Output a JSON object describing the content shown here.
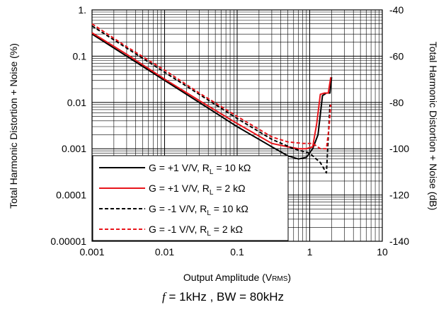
{
  "chart_data": {
    "type": "line",
    "xscale": "log",
    "yscale": "log",
    "xlim": [
      0.001,
      10
    ],
    "ylim": [
      1e-05,
      1
    ],
    "y2lim": [
      -140,
      -40
    ],
    "x_ticks": [
      "0.001",
      "0.01",
      "0.1",
      "1",
      "10"
    ],
    "y_ticks": [
      "0.00001",
      "0.0001",
      "0.001",
      "0.01",
      "0.1",
      "1."
    ],
    "y2_ticks": [
      "-140",
      "-120",
      "-100",
      "-80",
      "-60",
      "-40"
    ],
    "xlabel_prefix": "Output Amplitude (V",
    "xlabel_sub": "RMS",
    "xlabel_suffix": ")",
    "ylabel": "Total Harmonic Distortion + Noise (%)",
    "y2label": "Total Harmonic Distortion + Noise (dB)",
    "grid": true,
    "legend_position": "bottom-left",
    "series": [
      {
        "name_prefix": "G = +1 V/V, R",
        "name_sub": "L",
        "name_suffix": " = 10 kΩ",
        "color": "#000000",
        "dash": "solid",
        "x": [
          0.001,
          0.003,
          0.01,
          0.03,
          0.1,
          0.3,
          0.5,
          0.7,
          0.9,
          1.1,
          1.3,
          1.5,
          1.7,
          1.9,
          2.0
        ],
        "y": [
          0.3,
          0.1,
          0.03,
          0.01,
          0.003,
          0.0011,
          0.0007,
          0.0006,
          0.00065,
          0.001,
          0.002,
          0.014,
          0.016,
          0.016,
          0.035
        ]
      },
      {
        "name_prefix": "G = +1 V/V, R",
        "name_sub": "L",
        "name_suffix": " = 2 kΩ",
        "color": "#e8151b",
        "dash": "solid",
        "x": [
          0.001,
          0.003,
          0.01,
          0.03,
          0.1,
          0.3,
          0.5,
          0.7,
          0.9,
          1.1,
          1.25,
          1.4,
          1.6,
          1.8,
          1.95
        ],
        "y": [
          0.32,
          0.11,
          0.032,
          0.011,
          0.0035,
          0.0013,
          0.0011,
          0.001,
          0.001,
          0.0011,
          0.0035,
          0.015,
          0.016,
          0.016,
          0.035
        ]
      },
      {
        "name_prefix": "G = -1 V/V, R",
        "name_sub": "L",
        "name_suffix": " = 10 kΩ",
        "color": "#000000",
        "dash": "dashed",
        "x": [
          0.001,
          0.003,
          0.01,
          0.03,
          0.1,
          0.3,
          0.6,
          1.0,
          1.4,
          1.7,
          1.9
        ],
        "y": [
          0.45,
          0.15,
          0.045,
          0.015,
          0.0045,
          0.0016,
          0.001,
          0.0008,
          0.0005,
          0.0003,
          0.009
        ]
      },
      {
        "name_prefix": "G = -1 V/V, R",
        "name_sub": "L",
        "name_suffix": " = 2 kΩ",
        "color": "#e8151b",
        "dash": "dashed",
        "x": [
          0.001,
          0.003,
          0.01,
          0.03,
          0.1,
          0.3,
          0.5,
          0.8,
          1.1,
          1.4,
          1.7,
          1.85,
          1.95
        ],
        "y": [
          0.5,
          0.16,
          0.05,
          0.016,
          0.005,
          0.0018,
          0.0014,
          0.0013,
          0.0013,
          0.001,
          0.001,
          0.003,
          0.009
        ]
      }
    ]
  },
  "caption": {
    "f_symbol": "f",
    "text": " = 1kHz , BW = 80kHz"
  }
}
